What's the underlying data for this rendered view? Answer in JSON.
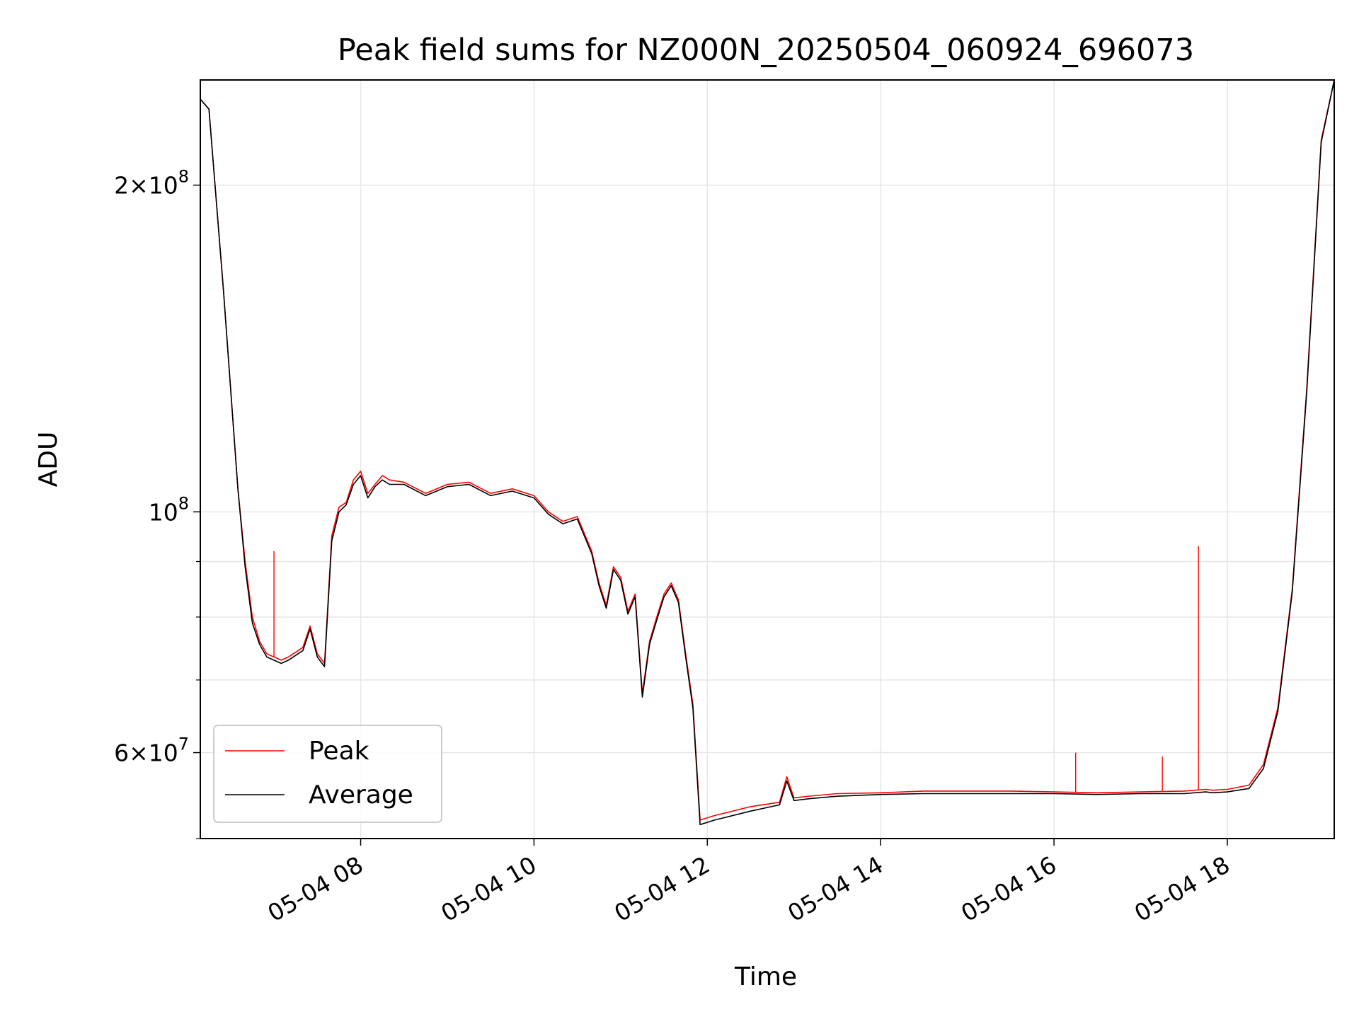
{
  "chart_data": {
    "type": "line",
    "title": "Peak field sums for NZ000N_20250504_060924_696073",
    "xlabel": "Time",
    "ylabel": "ADU",
    "yscale": "log",
    "xlim": [
      "2025-05-04 06:09",
      "2025-05-04 19:14"
    ],
    "ylim": [
      50000000,
      250000000
    ],
    "grid": true,
    "legend": "lower-left",
    "x_ticks": [
      {
        "value": "2025-05-04 08:00",
        "label": "05-04 08"
      },
      {
        "value": "2025-05-04 10:00",
        "label": "05-04 10"
      },
      {
        "value": "2025-05-04 12:00",
        "label": "05-04 12"
      },
      {
        "value": "2025-05-04 14:00",
        "label": "05-04 14"
      },
      {
        "value": "2025-05-04 16:00",
        "label": "05-04 16"
      },
      {
        "value": "2025-05-04 18:00",
        "label": "05-04 18"
      }
    ],
    "y_ticks_major": [
      {
        "value": 200000000,
        "base": "2",
        "exp": "8",
        "times": true
      },
      {
        "value": 100000000,
        "base": "10",
        "exp": "8",
        "times": false
      },
      {
        "value": 60000000,
        "base": "6",
        "exp": "7",
        "times": true
      }
    ],
    "y_ticks_minor": [
      50000000,
      70000000,
      80000000,
      90000000
    ],
    "series": [
      {
        "name": "Peak",
        "color": "#ff0000",
        "x": [
          "2025-05-04 06:09",
          "2025-05-04 06:15",
          "2025-05-04 06:25",
          "2025-05-04 06:35",
          "2025-05-04 06:40",
          "2025-05-04 06:45",
          "2025-05-04 06:50",
          "2025-05-04 06:55",
          "2025-05-04 07:00",
          "2025-05-04 07:05",
          "2025-05-04 07:10",
          "2025-05-04 07:20",
          "2025-05-04 07:25",
          "2025-05-04 07:30",
          "2025-05-04 07:35",
          "2025-05-04 07:40",
          "2025-05-04 07:45",
          "2025-05-04 07:50",
          "2025-05-04 07:55",
          "2025-05-04 08:00",
          "2025-05-04 08:05",
          "2025-05-04 08:10",
          "2025-05-04 08:15",
          "2025-05-04 08:20",
          "2025-05-04 08:30",
          "2025-05-04 08:45",
          "2025-05-04 09:00",
          "2025-05-04 09:15",
          "2025-05-04 09:30",
          "2025-05-04 09:45",
          "2025-05-04 10:00",
          "2025-05-04 10:10",
          "2025-05-04 10:20",
          "2025-05-04 10:30",
          "2025-05-04 10:40",
          "2025-05-04 10:45",
          "2025-05-04 10:50",
          "2025-05-04 10:55",
          "2025-05-04 11:00",
          "2025-05-04 11:05",
          "2025-05-04 11:10",
          "2025-05-04 11:15",
          "2025-05-04 11:20",
          "2025-05-04 11:25",
          "2025-05-04 11:30",
          "2025-05-04 11:35",
          "2025-05-04 11:40",
          "2025-05-04 11:45",
          "2025-05-04 11:50",
          "2025-05-04 11:55",
          "2025-05-04 12:05",
          "2025-05-04 12:30",
          "2025-05-04 12:50",
          "2025-05-04 12:55",
          "2025-05-04 13:00",
          "2025-05-04 13:10",
          "2025-05-04 13:30",
          "2025-05-04 14:00",
          "2025-05-04 14:30",
          "2025-05-04 15:00",
          "2025-05-04 15:30",
          "2025-05-04 16:00",
          "2025-05-04 16:30",
          "2025-05-04 17:00",
          "2025-05-04 17:30",
          "2025-05-04 17:45",
          "2025-05-04 17:50",
          "2025-05-04 18:00",
          "2025-05-04 18:15",
          "2025-05-04 18:25",
          "2025-05-04 18:35",
          "2025-05-04 18:45",
          "2025-05-04 18:55",
          "2025-05-04 19:05",
          "2025-05-04 19:14"
        ],
        "values": [
          240000000,
          235000000,
          160000000,
          105000000,
          90000000,
          80000000,
          76000000,
          74000000,
          73500000,
          73000000,
          73500000,
          75000000,
          78500000,
          74000000,
          72500000,
          95000000,
          101000000,
          102000000,
          107000000,
          109000000,
          104000000,
          106000000,
          108000000,
          107000000,
          106500000,
          104000000,
          106000000,
          106500000,
          104000000,
          105000000,
          103500000,
          100000000,
          98000000,
          99000000,
          92000000,
          86000000,
          82000000,
          89000000,
          87000000,
          81000000,
          84000000,
          68000000,
          76000000,
          80000000,
          84000000,
          86000000,
          83000000,
          74000000,
          66500000,
          52000000,
          52500000,
          53500000,
          54000000,
          57000000,
          54500000,
          54700000,
          55000000,
          55100000,
          55300000,
          55300000,
          55300000,
          55200000,
          55100000,
          55200000,
          55300000,
          55500000,
          55400000,
          55500000,
          56000000,
          58500000,
          66000000,
          85000000,
          130000000,
          220000000,
          250000000
        ],
        "spikes": [
          {
            "x": "2025-05-04 07:00",
            "value": 92000000
          },
          {
            "x": "2025-05-04 16:15",
            "value": 60000000
          },
          {
            "x": "2025-05-04 17:15",
            "value": 59500000
          },
          {
            "x": "2025-05-04 17:40",
            "value": 93000000
          }
        ]
      },
      {
        "name": "Average",
        "color": "#000000",
        "x": [
          "2025-05-04 06:09",
          "2025-05-04 06:15",
          "2025-05-04 06:25",
          "2025-05-04 06:35",
          "2025-05-04 06:40",
          "2025-05-04 06:45",
          "2025-05-04 06:50",
          "2025-05-04 06:55",
          "2025-05-04 07:00",
          "2025-05-04 07:05",
          "2025-05-04 07:10",
          "2025-05-04 07:20",
          "2025-05-04 07:25",
          "2025-05-04 07:30",
          "2025-05-04 07:35",
          "2025-05-04 07:40",
          "2025-05-04 07:45",
          "2025-05-04 07:50",
          "2025-05-04 07:55",
          "2025-05-04 08:00",
          "2025-05-04 08:05",
          "2025-05-04 08:10",
          "2025-05-04 08:15",
          "2025-05-04 08:20",
          "2025-05-04 08:30",
          "2025-05-04 08:45",
          "2025-05-04 09:00",
          "2025-05-04 09:15",
          "2025-05-04 09:30",
          "2025-05-04 09:45",
          "2025-05-04 10:00",
          "2025-05-04 10:10",
          "2025-05-04 10:20",
          "2025-05-04 10:30",
          "2025-05-04 10:40",
          "2025-05-04 10:45",
          "2025-05-04 10:50",
          "2025-05-04 10:55",
          "2025-05-04 11:00",
          "2025-05-04 11:05",
          "2025-05-04 11:10",
          "2025-05-04 11:15",
          "2025-05-04 11:20",
          "2025-05-04 11:25",
          "2025-05-04 11:30",
          "2025-05-04 11:35",
          "2025-05-04 11:40",
          "2025-05-04 11:45",
          "2025-05-04 11:50",
          "2025-05-04 11:55",
          "2025-05-04 12:05",
          "2025-05-04 12:30",
          "2025-05-04 12:50",
          "2025-05-04 12:55",
          "2025-05-04 13:00",
          "2025-05-04 13:10",
          "2025-05-04 13:30",
          "2025-05-04 14:00",
          "2025-05-04 14:30",
          "2025-05-04 15:00",
          "2025-05-04 15:30",
          "2025-05-04 16:00",
          "2025-05-04 16:30",
          "2025-05-04 17:00",
          "2025-05-04 17:30",
          "2025-05-04 17:45",
          "2025-05-04 17:50",
          "2025-05-04 18:00",
          "2025-05-04 18:15",
          "2025-05-04 18:25",
          "2025-05-04 18:35",
          "2025-05-04 18:45",
          "2025-05-04 18:55",
          "2025-05-04 19:05",
          "2025-05-04 19:14"
        ],
        "values": [
          240000000,
          235000000,
          160000000,
          105000000,
          89000000,
          79000000,
          75500000,
          73500000,
          73000000,
          72500000,
          73000000,
          74500000,
          78000000,
          73500000,
          72000000,
          94000000,
          100000000,
          101500000,
          106000000,
          108000000,
          103000000,
          105500000,
          107000000,
          106000000,
          106000000,
          103500000,
          105500000,
          106000000,
          103500000,
          104500000,
          103000000,
          99500000,
          97500000,
          98500000,
          91500000,
          85500000,
          81500000,
          88500000,
          86500000,
          80500000,
          83500000,
          67500000,
          75500000,
          79500000,
          83500000,
          85500000,
          82500000,
          73500000,
          66000000,
          51500000,
          52000000,
          53000000,
          53700000,
          56500000,
          54200000,
          54400000,
          54700000,
          54900000,
          55000000,
          55000000,
          55000000,
          55000000,
          54900000,
          55000000,
          55000000,
          55200000,
          55100000,
          55200000,
          55600000,
          58000000,
          65500000,
          84500000,
          129000000,
          219000000,
          250000000
        ]
      }
    ]
  }
}
